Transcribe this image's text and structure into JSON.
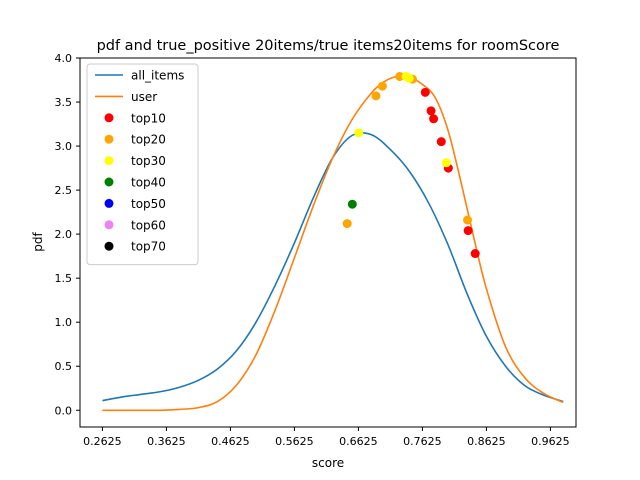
{
  "chart_data": {
    "type": "line",
    "title": "pdf and true_positive 20items/true items20items for roomScore",
    "xlabel": "score",
    "ylabel": "pdf",
    "xlim": [
      0.2275,
      1.0025
    ],
    "ylim": [
      -0.19,
      4.0
    ],
    "xticks": [
      0.2625,
      0.3625,
      0.4625,
      0.5625,
      0.6625,
      0.7625,
      0.8625,
      0.9625
    ],
    "xtick_labels": [
      "0.2625",
      "0.3625",
      "0.4625",
      "0.5625",
      "0.6625",
      "0.7625",
      "0.8625",
      "0.9625"
    ],
    "yticks": [
      0.0,
      0.5,
      1.0,
      1.5,
      2.0,
      2.5,
      3.0,
      3.5,
      4.0
    ],
    "ytick_labels": [
      "0.0",
      "0.5",
      "1.0",
      "1.5",
      "2.0",
      "2.5",
      "3.0",
      "3.5",
      "4.0"
    ],
    "grid": false,
    "legend_position": "top-left",
    "series": [
      {
        "name": "all_items",
        "color": "#1f77b4",
        "x": [
          0.2625,
          0.2925,
          0.3225,
          0.3525,
          0.3825,
          0.4125,
          0.4425,
          0.4725,
          0.5025,
          0.5325,
          0.5625,
          0.5925,
          0.6225,
          0.6525,
          0.6825,
          0.7125,
          0.7425,
          0.7725,
          0.8025,
          0.8325,
          0.8625,
          0.8925,
          0.9225,
          0.9525,
          0.9825
        ],
        "y": [
          0.11,
          0.15,
          0.18,
          0.21,
          0.26,
          0.34,
          0.47,
          0.68,
          1.0,
          1.42,
          1.9,
          2.42,
          2.87,
          3.12,
          3.13,
          2.96,
          2.71,
          2.35,
          1.88,
          1.32,
          0.84,
          0.5,
          0.28,
          0.17,
          0.1
        ]
      },
      {
        "name": "user",
        "color": "#ff7f0e",
        "x": [
          0.2625,
          0.2925,
          0.3225,
          0.3525,
          0.3825,
          0.4125,
          0.4425,
          0.4725,
          0.5025,
          0.5325,
          0.5625,
          0.5925,
          0.6225,
          0.6525,
          0.6825,
          0.7025,
          0.7225,
          0.7425,
          0.7625,
          0.7825,
          0.8025,
          0.8225,
          0.8425,
          0.8625,
          0.8925,
          0.9225,
          0.9525,
          0.9825
        ],
        "y": [
          0.0,
          0.0,
          0.0,
          0.0,
          0.01,
          0.03,
          0.1,
          0.29,
          0.63,
          1.14,
          1.73,
          2.33,
          2.87,
          3.3,
          3.6,
          3.73,
          3.79,
          3.78,
          3.7,
          3.55,
          3.18,
          2.6,
          1.97,
          1.38,
          0.72,
          0.37,
          0.19,
          0.09
        ]
      }
    ],
    "scatter_series": [
      {
        "name": "top10",
        "color": "#ff0000",
        "points": [
          [
            0.767,
            3.61
          ],
          [
            0.776,
            3.4
          ],
          [
            0.78,
            3.31
          ],
          [
            0.792,
            3.05
          ],
          [
            0.803,
            2.75
          ],
          [
            0.834,
            2.04
          ],
          [
            0.845,
            1.78
          ]
        ]
      },
      {
        "name": "top20",
        "color": "#ffa500",
        "points": [
          [
            0.645,
            2.12
          ],
          [
            0.69,
            3.57
          ],
          [
            0.7,
            3.68
          ],
          [
            0.727,
            3.79
          ],
          [
            0.747,
            3.76
          ],
          [
            0.833,
            2.16
          ]
        ]
      },
      {
        "name": "top30",
        "color": "#ffff00",
        "points": [
          [
            0.663,
            3.15
          ],
          [
            0.737,
            3.79
          ],
          [
            0.742,
            3.77
          ],
          [
            0.8,
            2.81
          ]
        ]
      },
      {
        "name": "top40",
        "color": "#008000",
        "points": [
          [
            0.653,
            2.34
          ]
        ]
      },
      {
        "name": "top50",
        "color": "#0000ff",
        "points": []
      },
      {
        "name": "top60",
        "color": "#ee82ee",
        "points": []
      },
      {
        "name": "top70",
        "color": "#000000",
        "points": []
      }
    ]
  }
}
